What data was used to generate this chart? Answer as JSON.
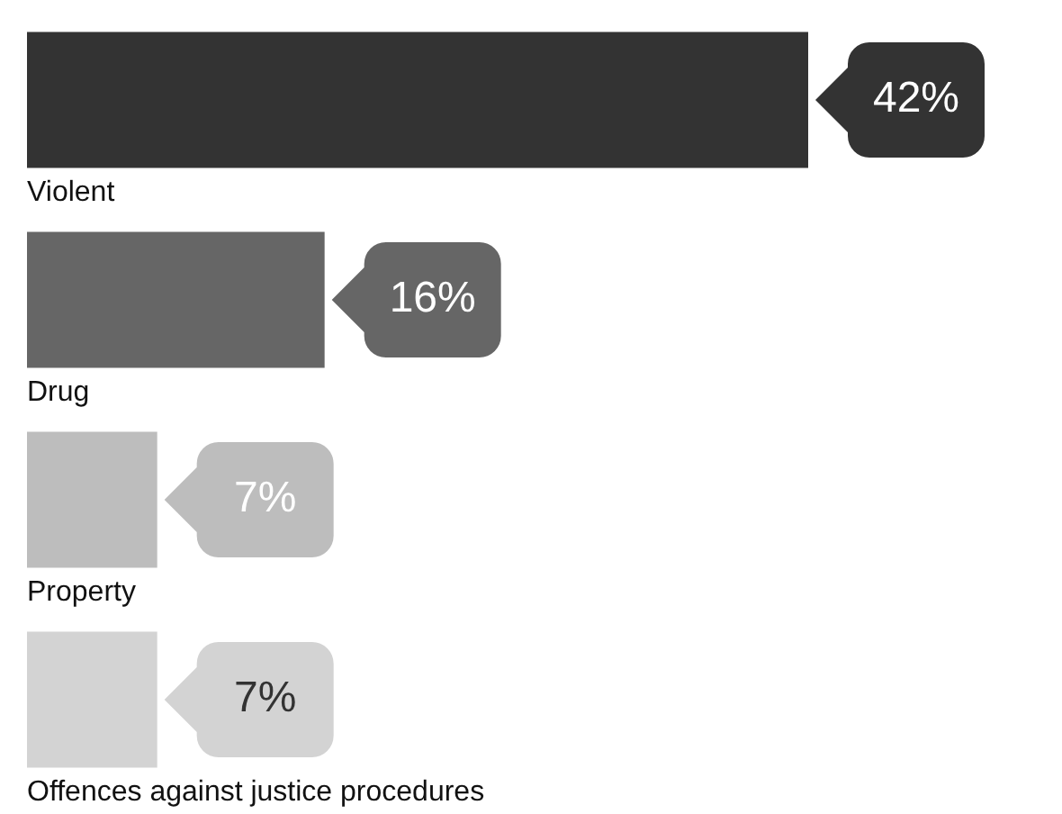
{
  "chart_data": {
    "type": "bar",
    "orientation": "horizontal",
    "tick_labels": "y",
    "categories": [
      "Violent",
      "Drug",
      "Property",
      "Offences against justice procedures"
    ],
    "values": [
      42,
      16,
      7,
      7
    ],
    "colors": [
      "#333333",
      "#666666",
      "#bdbdbd",
      "#d3d3d3"
    ],
    "value_labels": [
      "42%",
      "16%",
      "7%",
      "7%"
    ]
  }
}
